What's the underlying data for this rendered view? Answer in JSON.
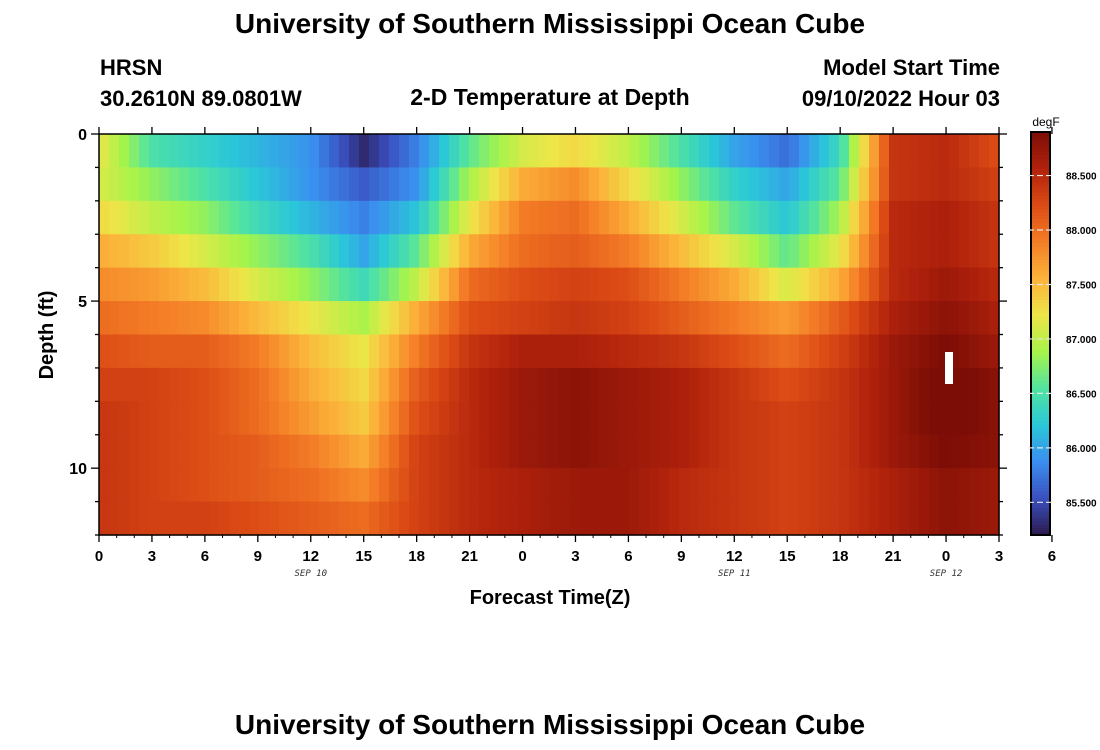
{
  "page": {
    "title": "University of Southern Mississippi Ocean Cube",
    "station": "HRSN",
    "coords": "30.2610N  89.0801W",
    "plot_title": "2-D Temperature at Depth",
    "model_label": "Model Start Time",
    "model_time": "09/10/2022 Hour 03",
    "bottom_title": "University of Southern Mississippi Ocean Cube"
  },
  "chart_data": {
    "type": "heatmap",
    "title": "2-D Temperature at Depth",
    "xlabel": "Forecast Time(Z)",
    "ylabel": "Depth (ft)",
    "x_hours": [
      0,
      51
    ],
    "ylim": [
      12,
      0
    ],
    "y_ticks": [
      0,
      5,
      10
    ],
    "x_tick_labels": [
      "0",
      "3",
      "6",
      "9",
      "12",
      "15",
      "18",
      "21",
      "0",
      "3",
      "6",
      "9",
      "12",
      "15",
      "18",
      "21",
      "0",
      "3",
      "6"
    ],
    "date_labels": [
      {
        "label": "SEP 10",
        "hour": 12
      },
      {
        "label": "SEP 11",
        "hour": 36
      },
      {
        "label": "SEP 12",
        "hour": 48
      }
    ],
    "depth_levels": [
      0.5,
      1.5,
      2.5,
      3.5,
      4.5,
      5.5,
      6.5,
      7.5,
      8.5,
      9.5,
      10.5,
      11.5
    ],
    "time_hours": [
      0,
      3,
      6,
      9,
      12,
      15,
      18,
      21,
      24,
      27,
      30,
      33,
      36,
      39,
      42,
      45,
      48,
      51
    ],
    "temperature_degF": [
      [
        87.2,
        86.5,
        86.3,
        86.1,
        85.9,
        85.3,
        85.8,
        86.6,
        87.1,
        87.3,
        87.0,
        86.5,
        86.0,
        85.7,
        86.4,
        88.4,
        88.5,
        88.2
      ],
      [
        87.1,
        86.8,
        86.5,
        86.2,
        85.9,
        85.6,
        85.9,
        86.9,
        87.6,
        87.8,
        87.3,
        86.8,
        86.3,
        86.0,
        86.6,
        88.4,
        88.5,
        88.3
      ],
      [
        87.3,
        87.0,
        86.8,
        86.4,
        86.1,
        85.8,
        86.2,
        87.2,
        87.9,
        88.0,
        87.6,
        87.1,
        86.6,
        86.2,
        86.9,
        88.5,
        88.6,
        88.4
      ],
      [
        87.6,
        87.4,
        87.1,
        86.8,
        86.5,
        86.0,
        86.6,
        87.6,
        88.0,
        88.1,
        87.9,
        87.5,
        87.1,
        86.6,
        87.2,
        88.5,
        88.6,
        88.4
      ],
      [
        87.8,
        87.7,
        87.5,
        87.1,
        86.8,
        86.4,
        87.0,
        88.0,
        88.2,
        88.3,
        88.2,
        87.9,
        87.6,
        87.1,
        87.6,
        88.5,
        88.7,
        88.5
      ],
      [
        88.0,
        87.9,
        87.8,
        87.5,
        87.2,
        86.9,
        87.6,
        88.2,
        88.3,
        88.4,
        88.3,
        88.1,
        87.9,
        87.7,
        88.1,
        88.6,
        88.8,
        88.6
      ],
      [
        88.2,
        88.1,
        88.1,
        87.9,
        87.5,
        87.2,
        87.9,
        88.4,
        88.6,
        88.6,
        88.5,
        88.4,
        88.2,
        88.0,
        88.3,
        88.7,
        88.9,
        88.7
      ],
      [
        88.3,
        88.3,
        88.2,
        88.0,
        87.6,
        87.3,
        88.1,
        88.5,
        88.7,
        88.8,
        88.7,
        88.6,
        88.4,
        88.2,
        88.4,
        88.7,
        89.0,
        88.8
      ],
      [
        88.4,
        88.3,
        88.2,
        88.0,
        87.7,
        87.4,
        88.2,
        88.5,
        88.7,
        88.8,
        88.7,
        88.6,
        88.4,
        88.3,
        88.4,
        88.7,
        89.0,
        88.8
      ],
      [
        88.4,
        88.3,
        88.2,
        88.1,
        87.9,
        87.6,
        88.3,
        88.5,
        88.7,
        88.8,
        88.7,
        88.6,
        88.4,
        88.3,
        88.4,
        88.7,
        88.9,
        88.8
      ],
      [
        88.4,
        88.3,
        88.2,
        88.1,
        88.0,
        87.8,
        88.3,
        88.5,
        88.6,
        88.7,
        88.7,
        88.5,
        88.4,
        88.3,
        88.4,
        88.6,
        88.8,
        88.7
      ],
      [
        88.4,
        88.3,
        88.3,
        88.2,
        88.1,
        88.0,
        88.3,
        88.5,
        88.6,
        88.7,
        88.7,
        88.5,
        88.4,
        88.3,
        88.4,
        88.6,
        88.8,
        88.7
      ]
    ],
    "colorbar": {
      "unit": "degF",
      "range": [
        85.2,
        88.9
      ],
      "tick_values": [
        85.5,
        86.0,
        86.5,
        87.0,
        87.5,
        88.0,
        88.5
      ],
      "tick_labels": [
        "85.500",
        "86.000",
        "86.500",
        "87.000",
        "87.500",
        "88.000",
        "88.500"
      ]
    },
    "colormap": [
      "#2b1a4e",
      "#3a4fbf",
      "#3a8eef",
      "#2ac8d8",
      "#52e3a0",
      "#a6f44a",
      "#eee548",
      "#fbb33a",
      "#f47d26",
      "#db4a15",
      "#b1220c",
      "#7c0d06"
    ]
  }
}
